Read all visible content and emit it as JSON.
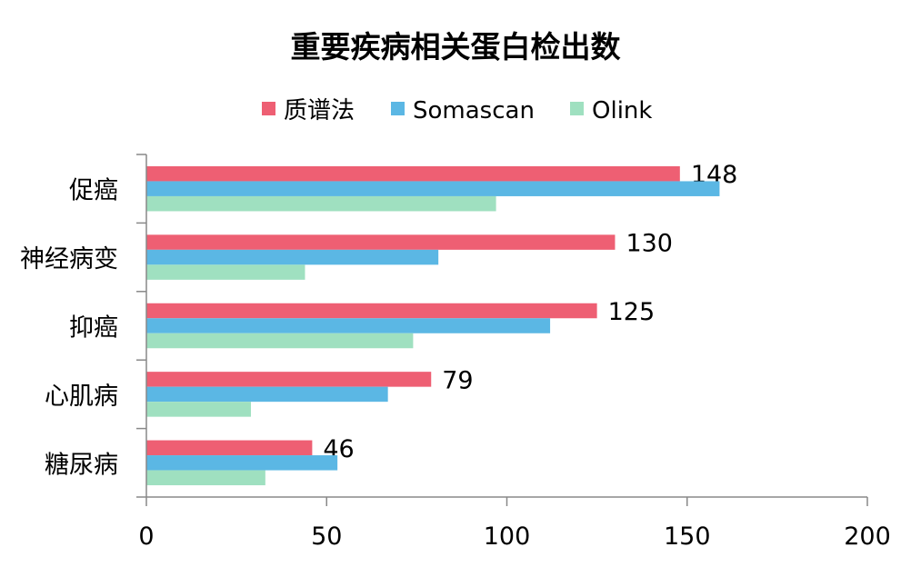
{
  "chart_data": {
    "type": "bar",
    "orientation": "horizontal",
    "title": "重要疾病相关蛋白检出数",
    "categories": [
      "促癌",
      "神经病变",
      "抑癌",
      "心肌病",
      "糖尿病"
    ],
    "series": [
      {
        "name": "质谱法",
        "color": "#EE5F73",
        "values": [
          148,
          130,
          125,
          79,
          46
        ],
        "show_labels": true
      },
      {
        "name": "Somascan",
        "color": "#5BB7E4",
        "values": [
          159,
          81,
          112,
          67,
          53
        ],
        "show_labels": false
      },
      {
        "name": "Olink",
        "color": "#9FE0C0",
        "values": [
          97,
          44,
          74,
          29,
          33
        ],
        "show_labels": false
      }
    ],
    "xlim": [
      0,
      200
    ],
    "xticks": [
      "0",
      "50",
      "100",
      "150",
      "200"
    ],
    "grid": false,
    "legend_position": "top"
  }
}
